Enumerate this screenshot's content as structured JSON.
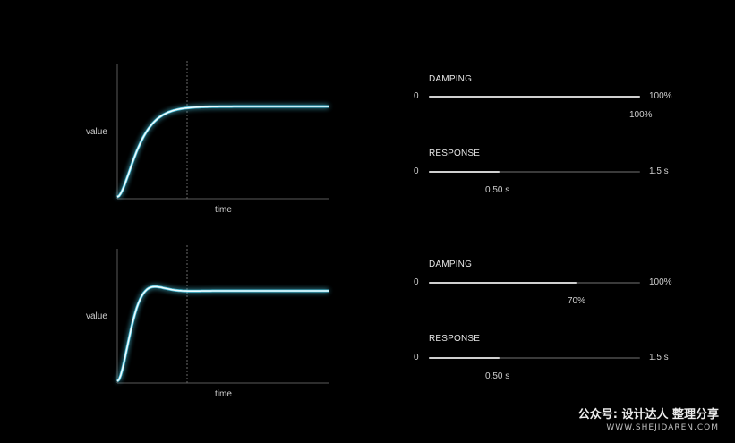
{
  "graphs": [
    {
      "y_label": "value",
      "x_label": "time",
      "damping_fraction": 1.0,
      "response_s": 0.5
    },
    {
      "y_label": "value",
      "x_label": "time",
      "damping_fraction": 0.7,
      "response_s": 0.5
    }
  ],
  "controls": [
    {
      "damping": {
        "title": "DAMPING",
        "min": "0",
        "max": "100%",
        "value": "100%",
        "fraction": 1.0
      },
      "response": {
        "title": "RESPONSE",
        "min": "0",
        "max": "1.5 s",
        "value": "0.50 s",
        "fraction": 0.333
      }
    },
    {
      "damping": {
        "title": "DAMPING",
        "min": "0",
        "max": "100%",
        "value": "70%",
        "fraction": 0.7
      },
      "response": {
        "title": "RESPONSE",
        "min": "0",
        "max": "1.5 s",
        "value": "0.50 s",
        "fraction": 0.333
      }
    }
  ],
  "watermark": {
    "line1": "公众号: 设计达人 整理分享",
    "line2": "WWW.SHEJIDAREN.COM"
  },
  "colors": {
    "curve": "#e8fbff",
    "glow": "#4fd3f0",
    "axis": "#5a5a5a",
    "track": "#3a3a3a",
    "fill": "#cfcfcf"
  }
}
